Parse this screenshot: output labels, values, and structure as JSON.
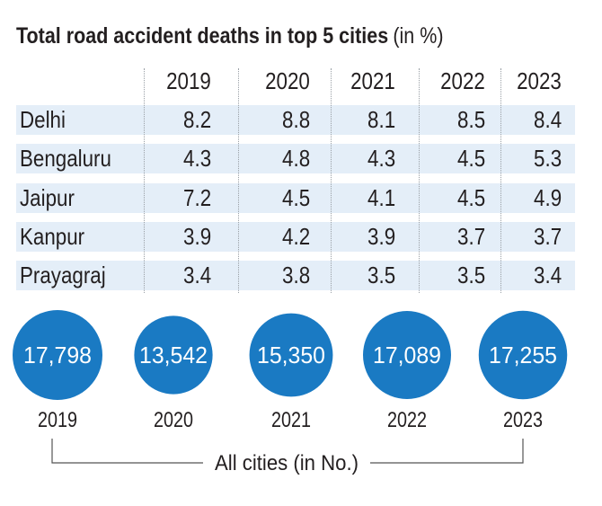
{
  "title": "Total road accident deaths in top 5 cities",
  "title_unit": "(in %)",
  "chart_data": [
    {
      "type": "table",
      "title": "Total road accident deaths in top 5 cities (in %)",
      "columns": [
        "2019",
        "2020",
        "2021",
        "2022",
        "2023"
      ],
      "rows": [
        {
          "city": "Delhi",
          "values": [
            "8.2",
            "8.8",
            "8.1",
            "8.5",
            "8.4"
          ]
        },
        {
          "city": "Bengaluru",
          "values": [
            "4.3",
            "4.8",
            "4.3",
            "4.5",
            "5.3"
          ]
        },
        {
          "city": "Jaipur",
          "values": [
            "7.2",
            "4.5",
            "4.1",
            "4.5",
            "4.9"
          ]
        },
        {
          "city": "Kanpur",
          "values": [
            "3.9",
            "4.2",
            "3.9",
            "3.7",
            "3.7"
          ]
        },
        {
          "city": "Prayagraj",
          "values": [
            "3.4",
            "3.8",
            "3.5",
            "3.5",
            "3.4"
          ]
        }
      ],
      "band_color": "#e4eef8"
    },
    {
      "type": "bubble",
      "categories": [
        "2019",
        "2020",
        "2021",
        "2022",
        "2023"
      ],
      "values": [
        17798,
        13542,
        15350,
        17089,
        17255
      ],
      "labels": [
        "17,798",
        "13,542",
        "15,350",
        "17,089",
        "17,255"
      ],
      "xlabel": "All cities (in No.)",
      "color": "#1a7ac3"
    }
  ]
}
